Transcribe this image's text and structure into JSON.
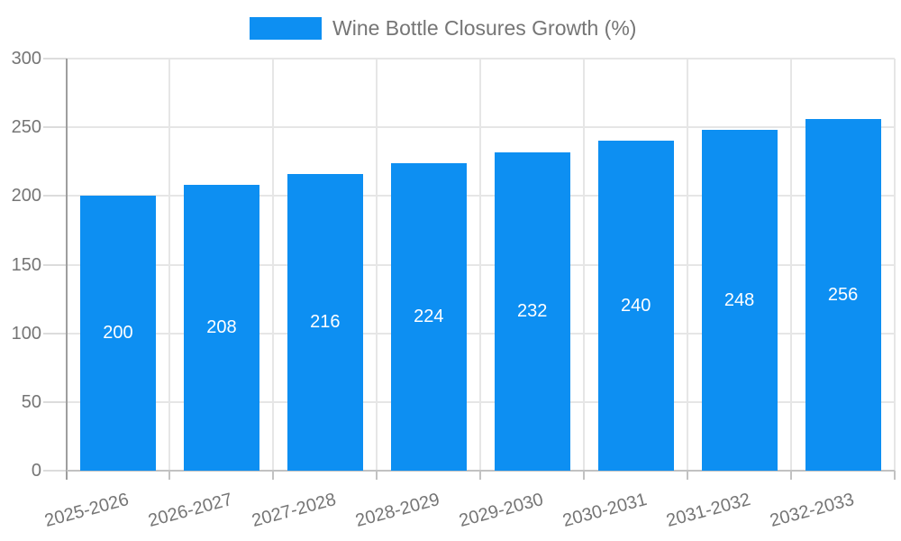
{
  "legend": {
    "label": "Wine Bottle Closures Growth (%)"
  },
  "chart_data": {
    "type": "bar",
    "title": "",
    "series_name": "Wine Bottle Closures Growth (%)",
    "categories": [
      "2025-2026",
      "2026-2027",
      "2027-2028",
      "2028-2029",
      "2029-2030",
      "2030-2031",
      "2031-2032",
      "2032-2033"
    ],
    "values": [
      200,
      208,
      216,
      224,
      232,
      240,
      248,
      256
    ],
    "xlabel": "",
    "ylabel": "",
    "ylim": [
      0,
      300
    ],
    "yticks": [
      0,
      50,
      100,
      150,
      200,
      250,
      300
    ],
    "grid": true,
    "legend_position": "top-center",
    "x_label_rotation_deg": -15,
    "colors": {
      "bar": "#0d8ff2",
      "bar_value_text": "#ffffff",
      "axis_text": "#757575",
      "legend_text": "#757575",
      "gridline": "#e6e6e6",
      "tick": "#dcdcdc",
      "y_axis_line": "#9e9e9e",
      "x_axis_line": "#c2c2c2",
      "background": "#ffffff"
    }
  }
}
